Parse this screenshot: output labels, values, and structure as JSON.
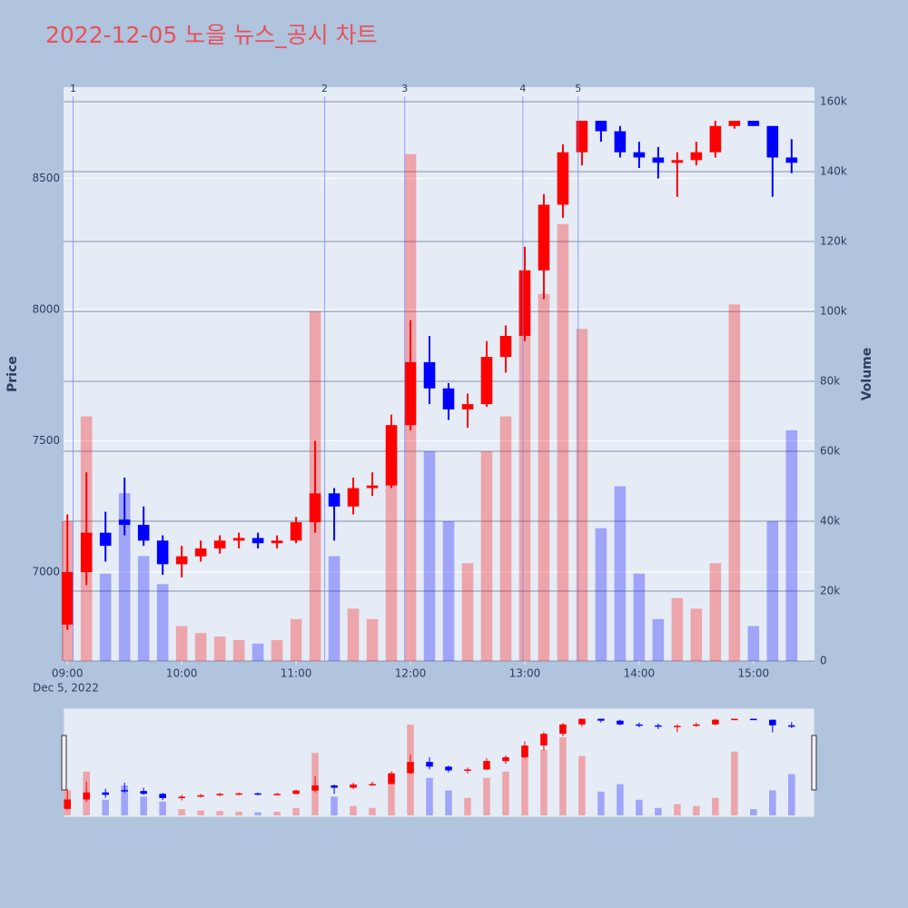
{
  "chart_data": {
    "type": "candlestick",
    "title": "2022-12-05 노을 뉴스_공시 차트",
    "y_label": "Price",
    "y2_label": "Volume",
    "x_date_label": "Dec 5, 2022",
    "increasing_color": "#ff0000",
    "decreasing_color": "#0000ff",
    "x": [
      "2022-12-05 09:00",
      "2022-12-05 09:10",
      "2022-12-05 09:20",
      "2022-12-05 09:30",
      "2022-12-05 09:40",
      "2022-12-05 09:50",
      "2022-12-05 10:00",
      "2022-12-05 10:10",
      "2022-12-05 10:20",
      "2022-12-05 10:30",
      "2022-12-05 10:40",
      "2022-12-05 10:50",
      "2022-12-05 11:00",
      "2022-12-05 11:10",
      "2022-12-05 11:20",
      "2022-12-05 11:30",
      "2022-12-05 11:40",
      "2022-12-05 11:50",
      "2022-12-05 12:00",
      "2022-12-05 12:10",
      "2022-12-05 12:20",
      "2022-12-05 12:30",
      "2022-12-05 12:40",
      "2022-12-05 12:50",
      "2022-12-05 13:00",
      "2022-12-05 13:10",
      "2022-12-05 13:20",
      "2022-12-05 13:30",
      "2022-12-05 13:40",
      "2022-12-05 13:50",
      "2022-12-05 14:00",
      "2022-12-05 14:10",
      "2022-12-05 14:20",
      "2022-12-05 14:30",
      "2022-12-05 14:40",
      "2022-12-05 14:50",
      "2022-12-05 15:00",
      "2022-12-05 15:10",
      "2022-12-05 15:20"
    ],
    "open": [
      6800,
      7000,
      7150,
      7200,
      7180,
      7120,
      7030,
      7060,
      7090,
      7120,
      7130,
      7110,
      7120,
      7190,
      7300,
      7250,
      7320,
      7330,
      7560,
      7800,
      7700,
      7620,
      7640,
      7820,
      7900,
      8150,
      8400,
      8600,
      8720,
      8680,
      8600,
      8580,
      8560,
      8570,
      8600,
      8700,
      8720,
      8700,
      8580
    ],
    "high": [
      7220,
      7380,
      7230,
      7360,
      7250,
      7140,
      7100,
      7120,
      7140,
      7150,
      7150,
      7140,
      7210,
      7500,
      7320,
      7360,
      7380,
      7600,
      7960,
      7900,
      7720,
      7680,
      7880,
      7940,
      8240,
      8440,
      8630,
      8720,
      8720,
      8700,
      8640,
      8620,
      8600,
      8640,
      8720,
      8720,
      8720,
      8700,
      8650
    ],
    "low": [
      6780,
      6950,
      7040,
      7140,
      7100,
      6990,
      6980,
      7040,
      7070,
      7090,
      7090,
      7090,
      7110,
      7150,
      7120,
      7220,
      7290,
      7320,
      7540,
      7640,
      7580,
      7550,
      7630,
      7760,
      7880,
      8040,
      8350,
      8550,
      8640,
      8580,
      8540,
      8500,
      8430,
      8550,
      8580,
      8690,
      8700,
      8430,
      8520
    ],
    "close": [
      7000,
      7150,
      7100,
      7180,
      7120,
      7030,
      7060,
      7090,
      7120,
      7130,
      7110,
      7120,
      7190,
      7300,
      7250,
      7320,
      7330,
      7560,
      7800,
      7700,
      7620,
      7640,
      7820,
      7900,
      8150,
      8400,
      8600,
      8720,
      8680,
      8600,
      8580,
      8560,
      8570,
      8600,
      8700,
      8720,
      8700,
      8580,
      8560
    ],
    "volume": [
      40000,
      70000,
      25000,
      48000,
      30000,
      22000,
      10000,
      8000,
      7000,
      6000,
      5000,
      6000,
      12000,
      100000,
      30000,
      15000,
      12000,
      58000,
      145000,
      60000,
      40000,
      28000,
      60000,
      70000,
      110000,
      105000,
      125000,
      95000,
      38000,
      50000,
      25000,
      12000,
      18000,
      15000,
      28000,
      102000,
      10000,
      40000,
      66000
    ],
    "ylim": [
      6661,
      8848
    ],
    "yticks": [
      7000,
      7500,
      8000,
      8500
    ],
    "y2lim": [
      0,
      164156
    ],
    "y2ticks": [
      {
        "value": 0,
        "label": "0"
      },
      {
        "value": 20000,
        "label": "20k"
      },
      {
        "value": 40000,
        "label": "40k"
      },
      {
        "value": 60000,
        "label": "60k"
      },
      {
        "value": 80000,
        "label": "80k"
      },
      {
        "value": 100000,
        "label": "100k"
      },
      {
        "value": 120000,
        "label": "120k"
      },
      {
        "value": 140000,
        "label": "140k"
      },
      {
        "value": 160000,
        "label": "160k"
      }
    ],
    "xlim": [
      "2022-12-05 08:58",
      "2022-12-05 15:32"
    ],
    "xticks": [
      {
        "value": "2022-12-05 09:00",
        "label": "09:00"
      },
      {
        "value": "2022-12-05 10:00",
        "label": "10:00"
      },
      {
        "value": "2022-12-05 11:00",
        "label": "11:00"
      },
      {
        "value": "2022-12-05 12:00",
        "label": "12:00"
      },
      {
        "value": "2022-12-05 13:00",
        "label": "13:00"
      },
      {
        "value": "2022-12-05 14:00",
        "label": "14:00"
      },
      {
        "value": "2022-12-05 15:00",
        "label": "15:00"
      }
    ],
    "news": [
      {
        "label": "1",
        "x": "2022-12-05 09:03"
      },
      {
        "label": "2",
        "x": "2022-12-05 11:15"
      },
      {
        "label": "3",
        "x": "2022-12-05 11:57"
      },
      {
        "label": "4",
        "x": "2022-12-05 12:59"
      },
      {
        "label": "5",
        "x": "2022-12-05 13:28"
      }
    ],
    "grid": true,
    "rangeslider": true
  }
}
